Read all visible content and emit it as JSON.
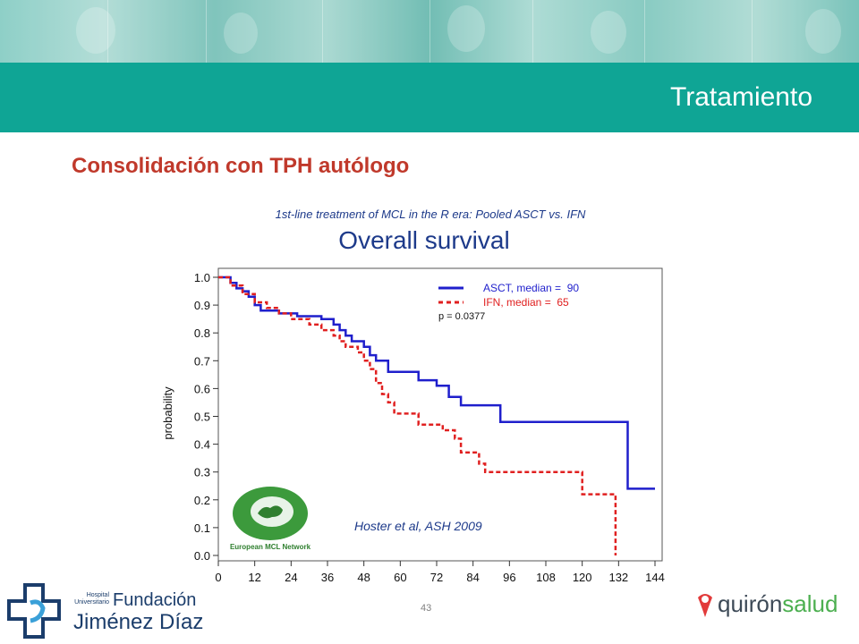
{
  "header": {
    "section_title": "Tratamiento"
  },
  "slide": {
    "subtitle": "Consolidación con TPH autólogo",
    "page_number": "43"
  },
  "logos": {
    "left": {
      "line1": "Hospital",
      "line2": "Universitario",
      "name1": "Fundación",
      "name2": "Jiménez Díaz"
    },
    "right": {
      "part1": "quirón",
      "part2": "salud"
    }
  },
  "colors": {
    "teal": "#0fa595",
    "accent_red": "#c0392b",
    "asct": "#1f1fcc",
    "ifn": "#e02020"
  },
  "chart_data": {
    "type": "line",
    "supertitle": "1st-line treatment of MCL in the R era: Pooled ASCT vs. IFN",
    "title": "Overall survival",
    "xlabel": "",
    "ylabel": "probability",
    "xlim": [
      0,
      144
    ],
    "ylim": [
      0.0,
      1.0
    ],
    "xticks": [
      "0",
      "12",
      "24",
      "36",
      "48",
      "60",
      "72",
      "84",
      "96",
      "108",
      "120",
      "132",
      "144"
    ],
    "yticks": [
      "0.0",
      "0.1",
      "0.2",
      "0.3",
      "0.4",
      "0.5",
      "0.6",
      "0.7",
      "0.8",
      "0.9",
      "1.0"
    ],
    "legend_position": "top-right",
    "pvalue": "p = 0.0377",
    "annotation": "Hoster et al, ASH 2009",
    "logo_text": "European MCL Network",
    "series": [
      {
        "name": "ASCT, median =  90",
        "style": "solid",
        "points": [
          [
            0,
            1.0
          ],
          [
            4,
            1.0
          ],
          [
            4,
            0.98
          ],
          [
            6,
            0.98
          ],
          [
            6,
            0.96
          ],
          [
            8,
            0.96
          ],
          [
            8,
            0.95
          ],
          [
            10,
            0.95
          ],
          [
            10,
            0.93
          ],
          [
            12,
            0.93
          ],
          [
            12,
            0.9
          ],
          [
            14,
            0.9
          ],
          [
            14,
            0.88
          ],
          [
            20,
            0.88
          ],
          [
            20,
            0.87
          ],
          [
            26,
            0.87
          ],
          [
            26,
            0.86
          ],
          [
            34,
            0.86
          ],
          [
            34,
            0.85
          ],
          [
            38,
            0.85
          ],
          [
            38,
            0.83
          ],
          [
            40,
            0.83
          ],
          [
            40,
            0.81
          ],
          [
            42,
            0.81
          ],
          [
            42,
            0.79
          ],
          [
            44,
            0.79
          ],
          [
            44,
            0.77
          ],
          [
            48,
            0.77
          ],
          [
            48,
            0.75
          ],
          [
            50,
            0.75
          ],
          [
            50,
            0.72
          ],
          [
            52,
            0.72
          ],
          [
            52,
            0.7
          ],
          [
            56,
            0.7
          ],
          [
            56,
            0.66
          ],
          [
            66,
            0.66
          ],
          [
            66,
            0.63
          ],
          [
            72,
            0.63
          ],
          [
            72,
            0.61
          ],
          [
            76,
            0.61
          ],
          [
            76,
            0.57
          ],
          [
            80,
            0.57
          ],
          [
            80,
            0.54
          ],
          [
            93,
            0.54
          ],
          [
            93,
            0.48
          ],
          [
            135,
            0.48
          ],
          [
            135,
            0.24
          ],
          [
            144,
            0.24
          ]
        ]
      },
      {
        "name": "IFN, median =  65",
        "style": "dashed",
        "points": [
          [
            0,
            1.0
          ],
          [
            4,
            1.0
          ],
          [
            4,
            0.97
          ],
          [
            8,
            0.97
          ],
          [
            8,
            0.94
          ],
          [
            12,
            0.94
          ],
          [
            12,
            0.91
          ],
          [
            16,
            0.91
          ],
          [
            16,
            0.89
          ],
          [
            20,
            0.89
          ],
          [
            20,
            0.87
          ],
          [
            24,
            0.87
          ],
          [
            24,
            0.85
          ],
          [
            30,
            0.85
          ],
          [
            30,
            0.83
          ],
          [
            34,
            0.83
          ],
          [
            34,
            0.81
          ],
          [
            38,
            0.81
          ],
          [
            38,
            0.79
          ],
          [
            40,
            0.79
          ],
          [
            40,
            0.77
          ],
          [
            42,
            0.77
          ],
          [
            42,
            0.75
          ],
          [
            46,
            0.75
          ],
          [
            46,
            0.73
          ],
          [
            48,
            0.73
          ],
          [
            48,
            0.7
          ],
          [
            50,
            0.7
          ],
          [
            50,
            0.67
          ],
          [
            52,
            0.67
          ],
          [
            52,
            0.62
          ],
          [
            54,
            0.62
          ],
          [
            54,
            0.58
          ],
          [
            56,
            0.58
          ],
          [
            56,
            0.55
          ],
          [
            58,
            0.55
          ],
          [
            58,
            0.51
          ],
          [
            66,
            0.51
          ],
          [
            66,
            0.47
          ],
          [
            74,
            0.47
          ],
          [
            74,
            0.45
          ],
          [
            78,
            0.45
          ],
          [
            78,
            0.42
          ],
          [
            80,
            0.42
          ],
          [
            80,
            0.37
          ],
          [
            86,
            0.37
          ],
          [
            86,
            0.33
          ],
          [
            88,
            0.33
          ],
          [
            88,
            0.3
          ],
          [
            120,
            0.3
          ],
          [
            120,
            0.22
          ],
          [
            131,
            0.22
          ],
          [
            131,
            0.0
          ]
        ]
      }
    ]
  }
}
